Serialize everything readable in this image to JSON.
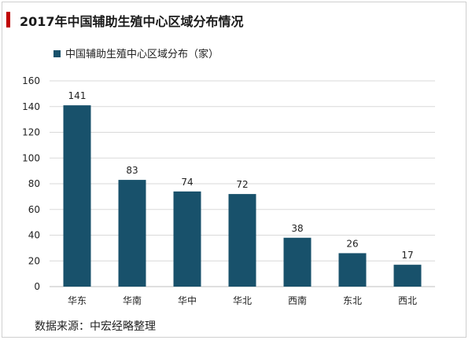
{
  "page": {
    "title": "2017年中国辅助生殖中心区域分布情况",
    "source": "数据来源：中宏经略整理"
  },
  "colors": {
    "accent": "#c00000",
    "bar": "#18516b",
    "grid": "#d9d9d9",
    "axis": "#bfbfbf"
  },
  "chart_data": {
    "type": "bar",
    "title": "2017年中国辅助生殖中心区域分布情况",
    "categories": [
      "华东",
      "华南",
      "华中",
      "华北",
      "西南",
      "东北",
      "西北"
    ],
    "series": [
      {
        "name": "中国辅助生殖中心区域分布（家）",
        "values": [
          141,
          83,
          74,
          72,
          38,
          26,
          17
        ]
      }
    ],
    "ylim": [
      0,
      160
    ],
    "yticks": [
      0,
      20,
      40,
      60,
      80,
      100,
      120,
      140,
      160
    ],
    "grid": true,
    "legend": "top-left",
    "data_labels": true
  }
}
